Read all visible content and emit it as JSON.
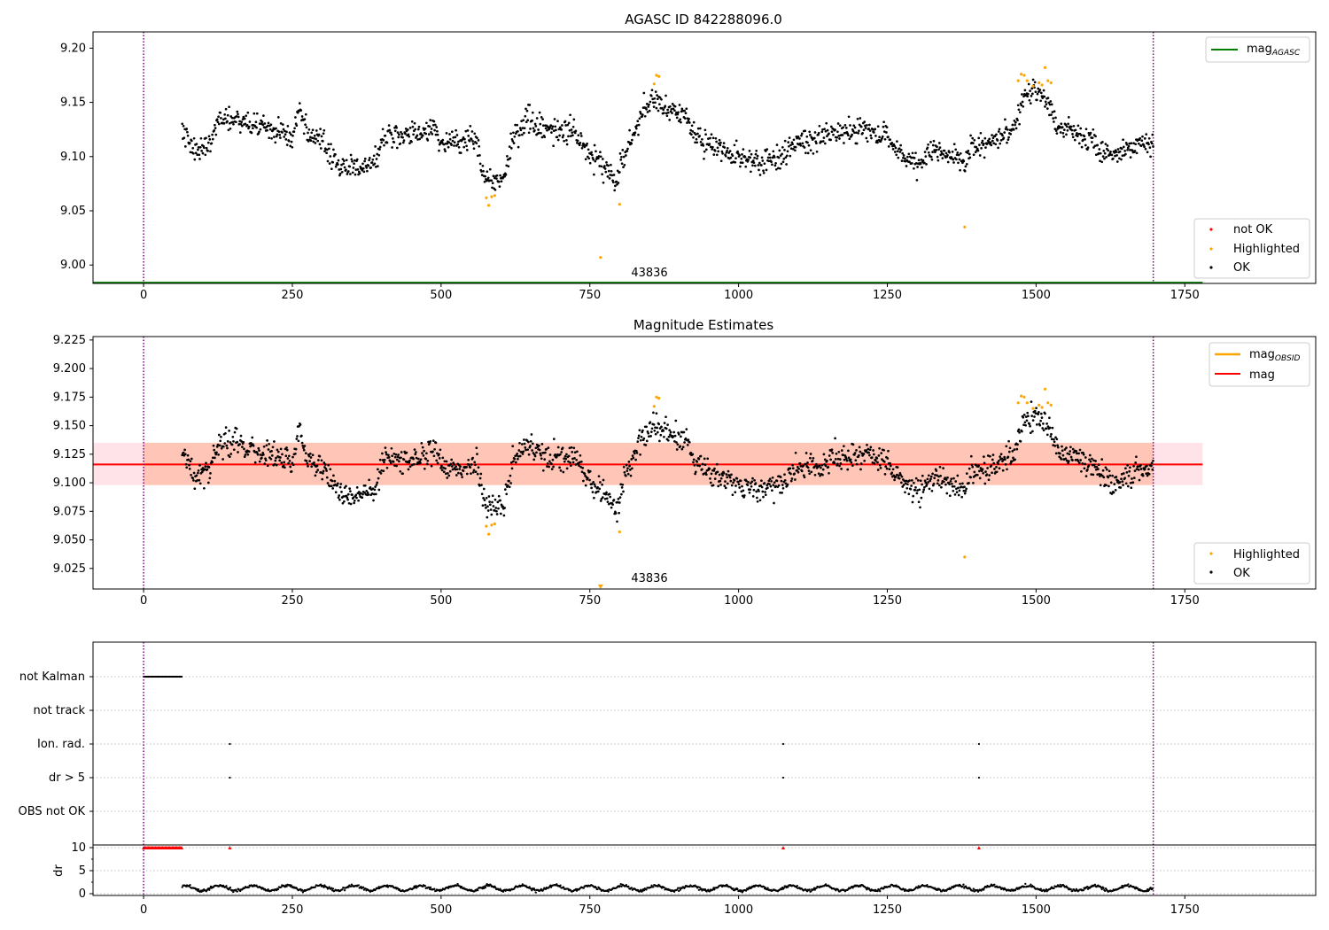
{
  "figure": {
    "id_label": "43836",
    "colors": {
      "ok": "#000000",
      "highlighted": "#ffa500",
      "not_ok": "#ff0000",
      "mag_agasc": "#008000",
      "mag_obsid": "#ffa500",
      "mag": "#ff0000",
      "band_outer": "#ffc0cb",
      "band_inner": "#ffa07a",
      "vline": "#800080"
    }
  },
  "chart_data": [
    {
      "type": "scatter",
      "title": "AGASC ID 842288096.0",
      "xlim": [
        -85,
        1970
      ],
      "ylim": [
        8.983,
        9.215
      ],
      "x_ticks": [
        0,
        250,
        500,
        750,
        1000,
        1250,
        1500,
        1750
      ],
      "y_ticks": [
        9.0,
        9.05,
        9.1,
        9.15,
        9.2
      ],
      "y_tick_labels": [
        "9.00",
        "9.05",
        "9.10",
        "9.15",
        "9.20"
      ],
      "obs_boundaries": [
        0,
        1697
      ],
      "mag_agasc": 8.983,
      "legend_lines": [
        {
          "name": "mag",
          "subscript": "AGASC",
          "color": "#008000"
        }
      ],
      "legend_points": [
        {
          "name": "not OK",
          "color": "#ff0000"
        },
        {
          "name": "Highlighted",
          "color": "#ffa500"
        },
        {
          "name": "OK",
          "color": "#000000"
        }
      ],
      "annotation": {
        "text": "43836",
        "x": 848,
        "y": 8.99
      },
      "series": [
        {
          "name": "OK",
          "segments": [
            [
              [
                65,
                9.125
              ],
              [
                90,
                9.102
              ],
              [
                110,
                9.112
              ],
              [
                125,
                9.135
              ],
              [
                160,
                9.134
              ],
              [
                190,
                9.128
              ],
              [
                230,
                9.123
              ],
              [
                250,
                9.116
              ],
              [
                262,
                9.148
              ],
              [
                275,
                9.118
              ],
              [
                300,
                9.113
              ],
              [
                330,
                9.093
              ],
              [
                360,
                9.088
              ],
              [
                390,
                9.096
              ],
              [
                405,
                9.122
              ],
              [
                430,
                9.118
              ],
              [
                460,
                9.122
              ],
              [
                490,
                9.127
              ],
              [
                500,
                9.115
              ],
              [
                530,
                9.112
              ],
              [
                560,
                9.118
              ],
              [
                570,
                9.088
              ],
              [
                590,
                9.075
              ],
              [
                605,
                9.08
              ],
              [
                620,
                9.118
              ],
              [
                645,
                9.137
              ],
              [
                660,
                9.128
              ],
              [
                690,
                9.122
              ],
              [
                720,
                9.124
              ],
              [
                740,
                9.11
              ],
              [
                760,
                9.098
              ],
              [
                785,
                9.085
              ],
              [
                795,
                9.075
              ],
              [
                805,
                9.1
              ],
              [
                820,
                9.118
              ],
              [
                840,
                9.14
              ],
              [
                860,
                9.152
              ],
              [
                880,
                9.143
              ],
              [
                910,
                9.138
              ],
              [
                930,
                9.118
              ],
              [
                960,
                9.108
              ],
              [
                1000,
                9.1
              ],
              [
                1030,
                9.095
              ],
              [
                1060,
                9.098
              ],
              [
                1075,
                9.1
              ],
              [
                1090,
                9.112
              ],
              [
                1130,
                9.115
              ],
              [
                1170,
                9.122
              ],
              [
                1210,
                9.125
              ],
              [
                1250,
                9.118
              ],
              [
                1280,
                9.098
              ],
              [
                1300,
                9.092
              ],
              [
                1330,
                9.105
              ],
              [
                1360,
                9.1
              ],
              [
                1380,
                9.092
              ],
              [
                1390,
                9.11
              ],
              [
                1410,
                9.11
              ],
              [
                1440,
                9.118
              ],
              [
                1465,
                9.128
              ],
              [
                1480,
                9.155
              ],
              [
                1500,
                9.16
              ],
              [
                1520,
                9.15
              ],
              [
                1540,
                9.125
              ],
              [
                1570,
                9.122
              ],
              [
                1600,
                9.113
              ],
              [
                1630,
                9.098
              ],
              [
                1660,
                9.108
              ],
              [
                1697,
                9.115
              ]
            ]
          ]
        },
        {
          "name": "Highlighted",
          "points": [
            [
              576,
              9.062
            ],
            [
              580,
              9.055
            ],
            [
              585,
              9.063
            ],
            [
              590,
              9.064
            ],
            [
              768,
              9.007
            ],
            [
              800,
              9.056
            ],
            [
              858,
              9.167
            ],
            [
              862,
              9.175
            ],
            [
              866,
              9.174
            ],
            [
              1380,
              9.035
            ],
            [
              1470,
              9.17
            ],
            [
              1475,
              9.176
            ],
            [
              1480,
              9.175
            ],
            [
              1485,
              9.17
            ],
            [
              1495,
              9.165
            ],
            [
              1505,
              9.168
            ],
            [
              1510,
              9.166
            ],
            [
              1515,
              9.182
            ],
            [
              1520,
              9.17
            ],
            [
              1525,
              9.168
            ]
          ]
        }
      ]
    },
    {
      "type": "scatter",
      "title": "Magnitude Estimates",
      "xlim": [
        -85,
        1970
      ],
      "ylim": [
        9.007,
        9.228
      ],
      "x_ticks": [
        0,
        250,
        500,
        750,
        1000,
        1250,
        1500,
        1750
      ],
      "y_ticks": [
        9.025,
        9.05,
        9.075,
        9.1,
        9.125,
        9.15,
        9.175,
        9.2,
        9.225
      ],
      "y_tick_labels": [
        "9.025",
        "9.050",
        "9.075",
        "9.100",
        "9.125",
        "9.150",
        "9.175",
        "9.200",
        "9.225"
      ],
      "obs_boundaries": [
        0,
        1697
      ],
      "mag": 9.116,
      "band_outer": [
        9.098,
        9.135
      ],
      "band_inner": [
        9.098,
        9.135
      ],
      "band_x": [
        -85,
        1780
      ],
      "band_inner_x": [
        0,
        1697
      ],
      "legend_lines": [
        {
          "name": "mag",
          "subscript": "OBSID",
          "color": "#ffa500"
        },
        {
          "name": "mag",
          "subscript": "",
          "color": "#ff0000"
        }
      ],
      "legend_points": [
        {
          "name": "Highlighted",
          "color": "#ffa500"
        },
        {
          "name": "OK",
          "color": "#000000"
        }
      ],
      "annotation": {
        "text": "43836",
        "x": 848,
        "y": 9.0115
      },
      "mag_obsid_marker": {
        "x": 768,
        "y": 9.007
      },
      "series": [
        {
          "name": "OK",
          "segments": [
            [
              [
                65,
                9.125
              ],
              [
                90,
                9.102
              ],
              [
                110,
                9.112
              ],
              [
                125,
                9.135
              ],
              [
                160,
                9.134
              ],
              [
                190,
                9.128
              ],
              [
                230,
                9.123
              ],
              [
                250,
                9.116
              ],
              [
                262,
                9.148
              ],
              [
                275,
                9.118
              ],
              [
                300,
                9.113
              ],
              [
                330,
                9.093
              ],
              [
                360,
                9.088
              ],
              [
                390,
                9.096
              ],
              [
                405,
                9.122
              ],
              [
                430,
                9.118
              ],
              [
                460,
                9.122
              ],
              [
                490,
                9.127
              ],
              [
                500,
                9.115
              ],
              [
                530,
                9.112
              ],
              [
                560,
                9.118
              ],
              [
                570,
                9.088
              ],
              [
                590,
                9.075
              ],
              [
                605,
                9.08
              ],
              [
                620,
                9.118
              ],
              [
                645,
                9.137
              ],
              [
                660,
                9.128
              ],
              [
                690,
                9.122
              ],
              [
                720,
                9.124
              ],
              [
                740,
                9.11
              ],
              [
                760,
                9.098
              ],
              [
                785,
                9.085
              ],
              [
                795,
                9.075
              ],
              [
                805,
                9.1
              ],
              [
                820,
                9.118
              ],
              [
                840,
                9.14
              ],
              [
                860,
                9.152
              ],
              [
                880,
                9.143
              ],
              [
                910,
                9.138
              ],
              [
                930,
                9.118
              ],
              [
                960,
                9.108
              ],
              [
                1000,
                9.1
              ],
              [
                1030,
                9.095
              ],
              [
                1060,
                9.098
              ],
              [
                1075,
                9.1
              ],
              [
                1090,
                9.112
              ],
              [
                1130,
                9.115
              ],
              [
                1170,
                9.122
              ],
              [
                1210,
                9.125
              ],
              [
                1250,
                9.118
              ],
              [
                1280,
                9.098
              ],
              [
                1300,
                9.092
              ],
              [
                1330,
                9.105
              ],
              [
                1360,
                9.1
              ],
              [
                1380,
                9.092
              ],
              [
                1390,
                9.11
              ],
              [
                1410,
                9.11
              ],
              [
                1440,
                9.118
              ],
              [
                1465,
                9.128
              ],
              [
                1480,
                9.155
              ],
              [
                1500,
                9.16
              ],
              [
                1520,
                9.15
              ],
              [
                1540,
                9.125
              ],
              [
                1570,
                9.122
              ],
              [
                1600,
                9.113
              ],
              [
                1630,
                9.098
              ],
              [
                1660,
                9.108
              ],
              [
                1697,
                9.115
              ]
            ]
          ]
        },
        {
          "name": "Highlighted",
          "points": [
            [
              576,
              9.062
            ],
            [
              580,
              9.055
            ],
            [
              585,
              9.063
            ],
            [
              590,
              9.064
            ],
            [
              800,
              9.057
            ],
            [
              858,
              9.167
            ],
            [
              862,
              9.175
            ],
            [
              866,
              9.174
            ],
            [
              1380,
              9.035
            ],
            [
              1470,
              9.17
            ],
            [
              1475,
              9.176
            ],
            [
              1480,
              9.175
            ],
            [
              1485,
              9.17
            ],
            [
              1495,
              9.165
            ],
            [
              1505,
              9.168
            ],
            [
              1510,
              9.166
            ],
            [
              1515,
              9.182
            ],
            [
              1520,
              9.17
            ],
            [
              1525,
              9.168
            ]
          ]
        }
      ]
    },
    {
      "type": "scatter",
      "title": "",
      "xlim": [
        -85,
        1970
      ],
      "x_ticks": [
        0,
        250,
        500,
        750,
        1000,
        1250,
        1500,
        1750
      ],
      "obs_boundaries": [
        0,
        1697
      ],
      "flag_rows": [
        "not Kalman",
        "not track",
        "Ion. rad.",
        "dr > 5",
        "OBS not OK"
      ],
      "flags": {
        "not Kalman": {
          "from": 0,
          "to": 65
        },
        "Ion. rad.": {
          "points": [
            145,
            1075,
            1404
          ]
        },
        "dr > 5": {
          "points": [
            145,
            1075,
            1404
          ]
        }
      }
    },
    {
      "type": "line",
      "title": "",
      "xlabel": "",
      "ylabel": "dr",
      "xlim": [
        -85,
        1970
      ],
      "ylim": [
        -0.5,
        10.5
      ],
      "x_ticks": [
        0,
        250,
        500,
        750,
        1000,
        1250,
        1500,
        1750
      ],
      "y_ticks": [
        0,
        5,
        10
      ],
      "y_tick_labels": [
        "0",
        "5",
        "10"
      ],
      "obs_boundaries": [
        0,
        1697
      ],
      "clipped_points": {
        "range": [
          0,
          65
        ],
        "extra": [
          145,
          1075,
          1404
        ],
        "value": 10
      },
      "dr_typical": 1.2,
      "dr_start": 65
    }
  ]
}
